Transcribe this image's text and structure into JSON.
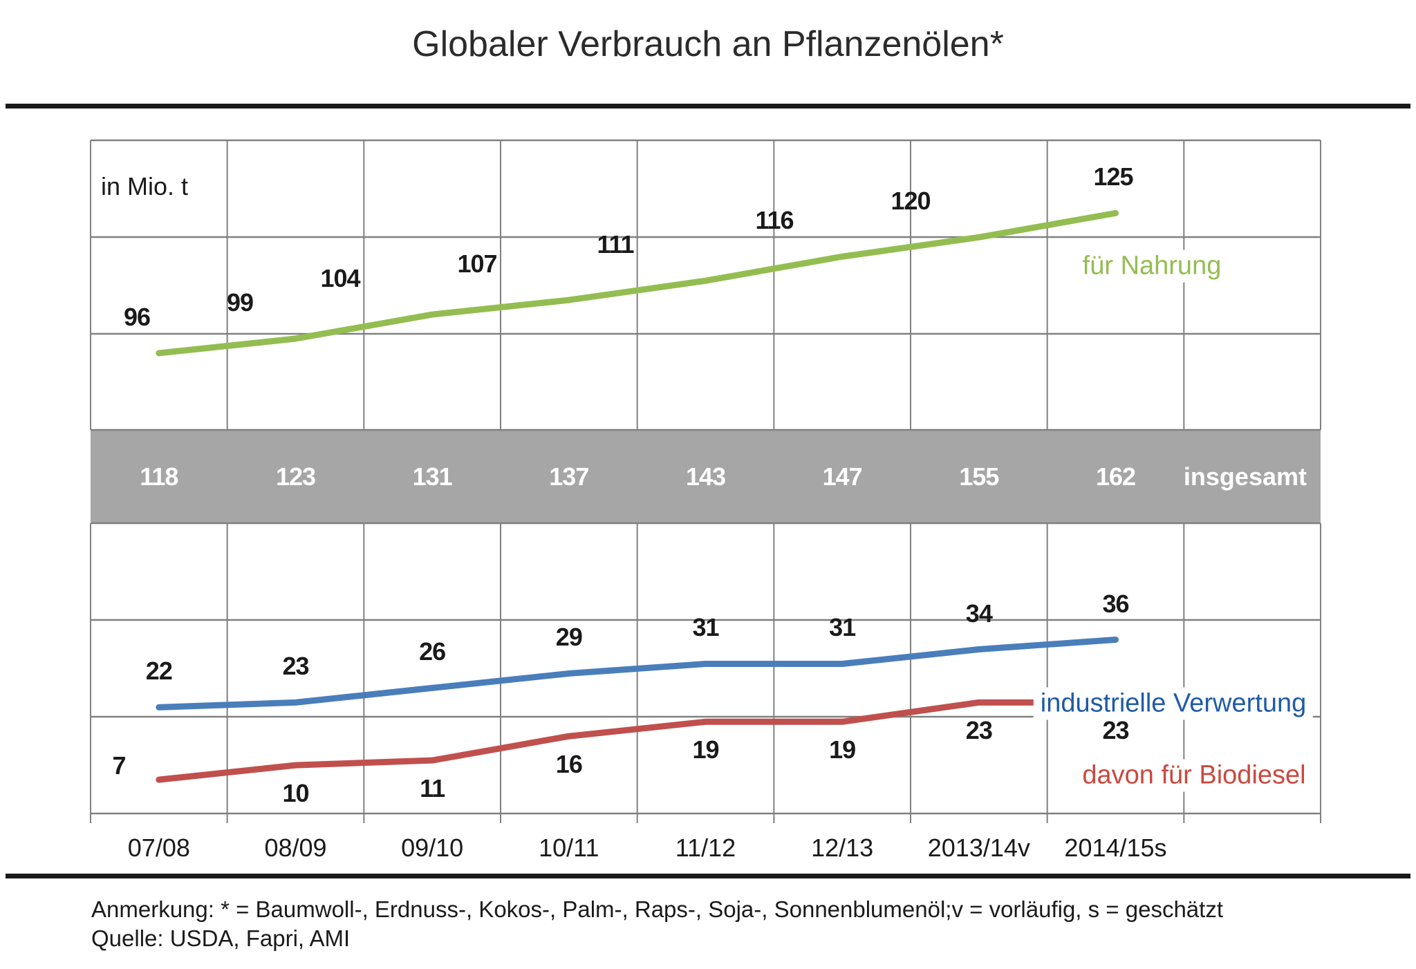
{
  "title": "Globaler Verbrauch an Pflanzenölen*",
  "unit_label": "in Mio. t",
  "footer": {
    "note": "Anmerkung: * = Baumwoll-, Erdnuss-, Kokos-, Palm-, Raps-, Soja-, Sonnenblumenöl;v = vorläufig, s = geschätzt",
    "source": "Quelle: USDA, Fapri, AMI"
  },
  "colors": {
    "grid": "#808080",
    "band": "#a6a6a6",
    "band_text": "#ffffff",
    "text": "#1a1a1a",
    "rule": "#1a1a1a"
  },
  "chart_data": {
    "type": "line",
    "title": "Globaler Verbrauch an Pflanzenölen*",
    "unit": "in Mio. t",
    "grid": true,
    "categories": [
      "07/08",
      "08/09",
      "09/10",
      "10/11",
      "11/12",
      "12/13",
      "2013/14v",
      "2014/15s"
    ],
    "series": [
      {
        "name": "für Nahrung",
        "values": [
          96,
          99,
          104,
          107,
          111,
          116,
          120,
          125
        ],
        "line_color": "#94bd51",
        "label_color": "#94bd51"
      },
      {
        "name": "industrielle Verwertung",
        "values": [
          22,
          23,
          26,
          29,
          31,
          31,
          34,
          36
        ],
        "line_color": "#4a7ebb",
        "label_color": "#1f5aa8"
      },
      {
        "name": "davon für Biodiesel",
        "values": [
          7,
          10,
          11,
          16,
          19,
          19,
          23,
          23
        ],
        "line_color": "#c0504d",
        "label_color": "#c9493f"
      }
    ],
    "totals": {
      "label": "insgesamt",
      "values": [
        118,
        123,
        131,
        137,
        143,
        147,
        155,
        162
      ]
    }
  }
}
